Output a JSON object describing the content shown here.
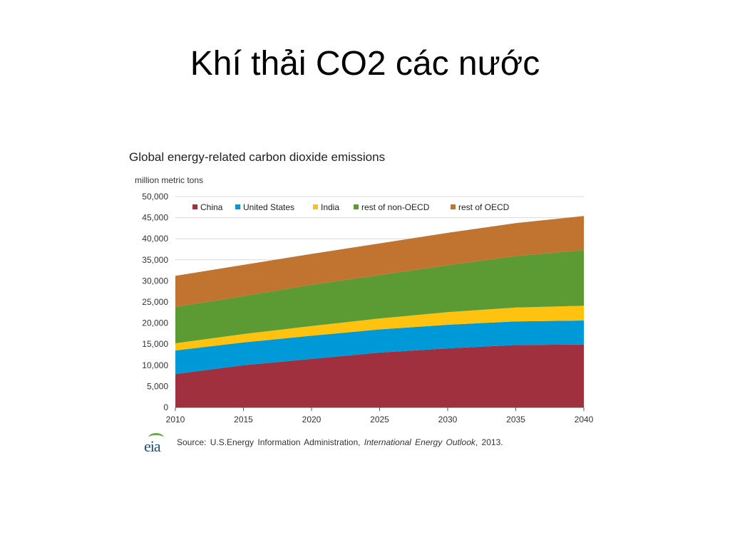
{
  "slide": {
    "title": "Khí thải CO2 các nước"
  },
  "source": {
    "prefix": "Source:  U.S.Energy Information  Administration, ",
    "publication": "International  Energy  Outlook",
    "suffix": ", 2013.",
    "logo_text": "eia"
  },
  "chart_data": {
    "type": "area",
    "stacked": true,
    "title": "Global energy-related carbon dioxide emissions",
    "ylabel": "million metric tons",
    "xlabel": "",
    "x": [
      2010,
      2015,
      2020,
      2025,
      2030,
      2035,
      2040
    ],
    "ylim": [
      0,
      50000
    ],
    "yticks": [
      0,
      5000,
      10000,
      15000,
      20000,
      25000,
      30000,
      35000,
      40000,
      45000,
      50000
    ],
    "ytick_labels": [
      "0",
      "5,000",
      "10,000",
      "15,000",
      "20,000",
      "25,000",
      "30,000",
      "35,000",
      "40,000",
      "45,000",
      "50,000"
    ],
    "xtick_labels": [
      "2010",
      "2015",
      "2020",
      "2025",
      "2030",
      "2035",
      "2040"
    ],
    "grid": true,
    "legend_position": "top",
    "series": [
      {
        "name": "China",
        "color": "#a0303e",
        "values": [
          7900,
          10000,
          11500,
          13000,
          14000,
          14800,
          14900
        ]
      },
      {
        "name": "United States",
        "color": "#0099d8",
        "values": [
          5600,
          5400,
          5500,
          5500,
          5600,
          5600,
          5700
        ]
      },
      {
        "name": "India",
        "color": "#ffc20e",
        "values": [
          1700,
          2000,
          2300,
          2600,
          3000,
          3300,
          3500
        ]
      },
      {
        "name": "rest of non-OECD",
        "color": "#5c9a34",
        "values": [
          8600,
          9000,
          9800,
          10300,
          11100,
          12200,
          13200
        ]
      },
      {
        "name": "rest of OECD",
        "color": "#c07430",
        "values": [
          7400,
          7400,
          7300,
          7500,
          7700,
          7800,
          8100
        ]
      }
    ]
  }
}
